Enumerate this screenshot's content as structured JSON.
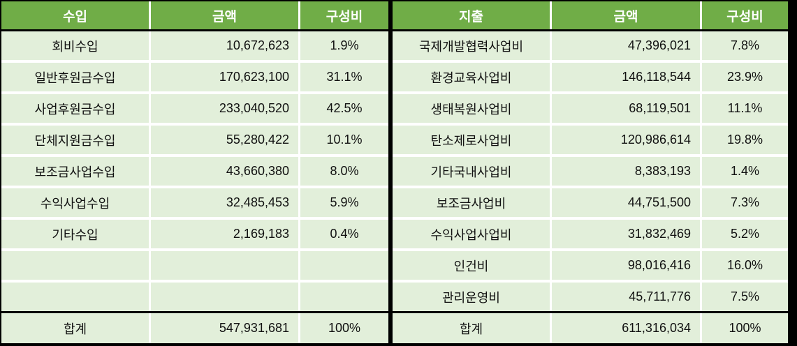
{
  "colors": {
    "header_bg": "#70AD47",
    "body_bg": "#E2EFDA",
    "border": "#000000",
    "separator": "#FFFFFF",
    "header_text": "#FFFFFF",
    "body_text": "#111111"
  },
  "left_table": {
    "headers": [
      "수입",
      "금액",
      "구성비"
    ],
    "rows": [
      {
        "label": "회비수입",
        "amount": "10,672,623",
        "ratio": "1.9%"
      },
      {
        "label": "일반후원금수입",
        "amount": "170,623,100",
        "ratio": "31.1%"
      },
      {
        "label": "사업후원금수입",
        "amount": "233,040,520",
        "ratio": "42.5%"
      },
      {
        "label": "단체지원금수입",
        "amount": "55,280,422",
        "ratio": "10.1%"
      },
      {
        "label": "보조금사업수입",
        "amount": "43,660,380",
        "ratio": "8.0%"
      },
      {
        "label": "수익사업수입",
        "amount": "32,485,453",
        "ratio": "5.9%"
      },
      {
        "label": "기타수입",
        "amount": "2,169,183",
        "ratio": "0.4%"
      },
      {
        "label": "",
        "amount": "",
        "ratio": ""
      },
      {
        "label": "",
        "amount": "",
        "ratio": ""
      }
    ],
    "total": {
      "label": "합계",
      "amount": "547,931,681",
      "ratio": "100%"
    }
  },
  "right_table": {
    "headers": [
      "지출",
      "금액",
      "구성비"
    ],
    "rows": [
      {
        "label": "국제개발협력사업비",
        "amount": "47,396,021",
        "ratio": "7.8%"
      },
      {
        "label": "환경교육사업비",
        "amount": "146,118,544",
        "ratio": "23.9%"
      },
      {
        "label": "생태복원사업비",
        "amount": "68,119,501",
        "ratio": "11.1%"
      },
      {
        "label": "탄소제로사업비",
        "amount": "120,986,614",
        "ratio": "19.8%"
      },
      {
        "label": "기타국내사업비",
        "amount": "8,383,193",
        "ratio": "1.4%"
      },
      {
        "label": "보조금사업비",
        "amount": "44,751,500",
        "ratio": "7.3%"
      },
      {
        "label": "수익사업사업비",
        "amount": "31,832,469",
        "ratio": "5.2%"
      },
      {
        "label": "인건비",
        "amount": "98,016,416",
        "ratio": "16.0%"
      },
      {
        "label": "관리운영비",
        "amount": "45,711,776",
        "ratio": "7.5%"
      }
    ],
    "total": {
      "label": "합계",
      "amount": "611,316,034",
      "ratio": "100%"
    }
  },
  "chart_data": [
    {
      "type": "table",
      "title": "수입 (Income)",
      "columns": [
        "수입",
        "금액",
        "구성비"
      ],
      "rows": [
        [
          "회비수입",
          10672623,
          "1.9%"
        ],
        [
          "일반후원금수입",
          170623100,
          "31.1%"
        ],
        [
          "사업후원금수입",
          233040520,
          "42.5%"
        ],
        [
          "단체지원금수입",
          55280422,
          "10.1%"
        ],
        [
          "보조금사업수입",
          43660380,
          "8.0%"
        ],
        [
          "수익사업수입",
          32485453,
          "5.9%"
        ],
        [
          "기타수입",
          2169183,
          "0.4%"
        ]
      ],
      "total": [
        "합계",
        547931681,
        "100%"
      ]
    },
    {
      "type": "table",
      "title": "지출 (Expenditure)",
      "columns": [
        "지출",
        "금액",
        "구성비"
      ],
      "rows": [
        [
          "국제개발협력사업비",
          47396021,
          "7.8%"
        ],
        [
          "환경교육사업비",
          146118544,
          "23.9%"
        ],
        [
          "생태복원사업비",
          68119501,
          "11.1%"
        ],
        [
          "탄소제로사업비",
          120986614,
          "19.8%"
        ],
        [
          "기타국내사업비",
          8383193,
          "1.4%"
        ],
        [
          "보조금사업비",
          44751500,
          "7.3%"
        ],
        [
          "수익사업사업비",
          31832469,
          "5.2%"
        ],
        [
          "인건비",
          98016416,
          "16.0%"
        ],
        [
          "관리운영비",
          45711776,
          "7.5%"
        ]
      ],
      "total": [
        "합계",
        611316034,
        "100%"
      ]
    }
  ]
}
